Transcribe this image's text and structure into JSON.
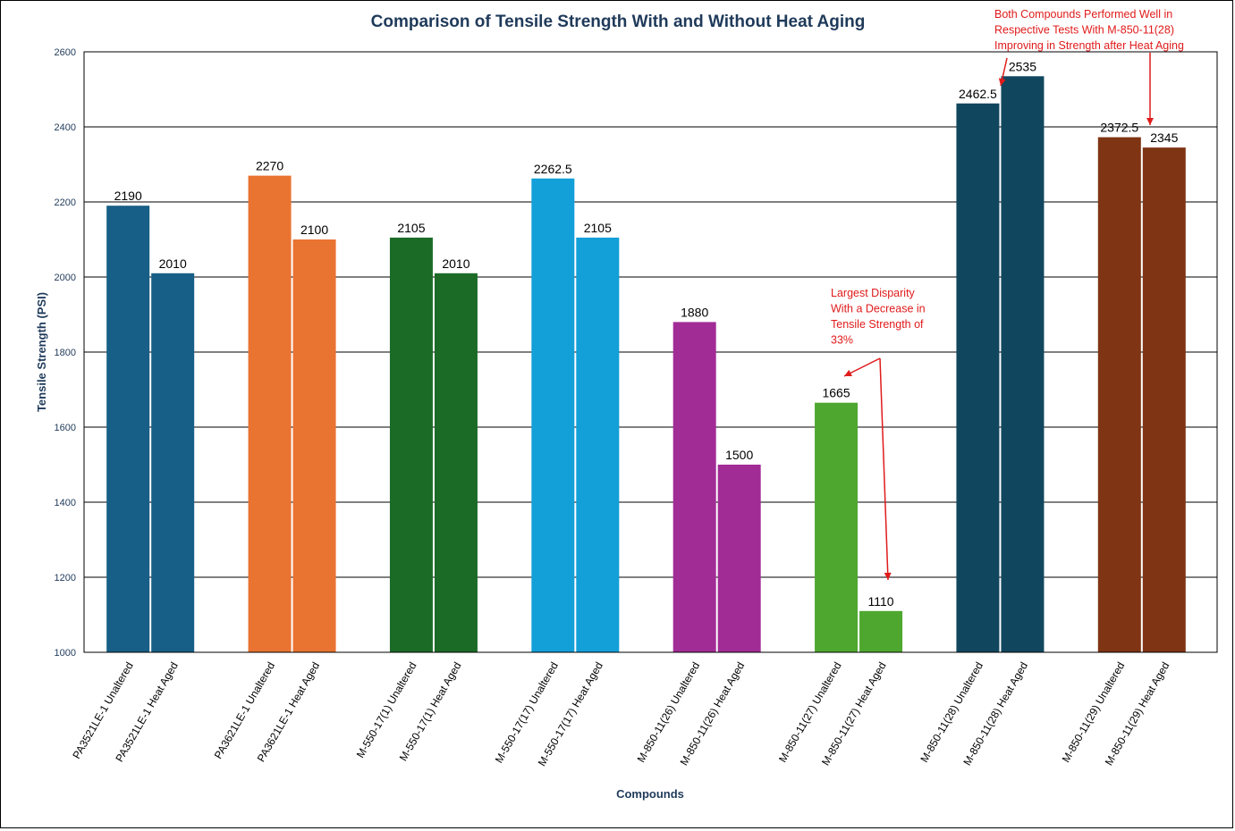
{
  "chart_data": {
    "type": "bar",
    "title": "Comparison of Tensile Strength With and Without Heat Aging",
    "xlabel": "Compounds",
    "ylabel": "Tensile Strength (PSI)",
    "ylim": [
      1000,
      2600
    ],
    "yticks": [
      1000,
      1200,
      1400,
      1600,
      1800,
      2000,
      2200,
      2400,
      2600
    ],
    "grid": true,
    "groups": [
      {
        "color": "#175f86",
        "bars": [
          {
            "label": "PA3521LE-1 Unaltered",
            "value": 2190,
            "value_label": "2190"
          },
          {
            "label": "PA3521LE-1 Heat Aged",
            "value": 2010,
            "value_label": "2010"
          }
        ]
      },
      {
        "color": "#e97331",
        "bars": [
          {
            "label": "PA3621LE-1 Unaltered",
            "value": 2270,
            "value_label": "2270"
          },
          {
            "label": "PA3621LE-1 Heat Aged",
            "value": 2100,
            "value_label": "2100"
          }
        ]
      },
      {
        "color": "#1b6b27",
        "bars": [
          {
            "label": "M-550-17(1) Unaltered",
            "value": 2105,
            "value_label": "2105"
          },
          {
            "label": "M-550-17(1) Heat Aged",
            "value": 2010,
            "value_label": "2010"
          }
        ]
      },
      {
        "color": "#139fd8",
        "bars": [
          {
            "label": "M-550-17(17) Unaltered",
            "value": 2262.5,
            "value_label": "2262.5"
          },
          {
            "label": "M-550-17(17) Heat Aged",
            "value": 2105,
            "value_label": "2105"
          }
        ]
      },
      {
        "color": "#a12c96",
        "bars": [
          {
            "label": "M-850-11(26) Unaltered",
            "value": 1880,
            "value_label": "1880"
          },
          {
            "label": "M-850-11(26) Heat Aged",
            "value": 1500,
            "value_label": "1500"
          }
        ]
      },
      {
        "color": "#4ea72e",
        "bars": [
          {
            "label": "M-850-11(27) Unaltered",
            "value": 1665,
            "value_label": "1665"
          },
          {
            "label": "M-850-11(27) Heat Aged",
            "value": 1110,
            "value_label": "1110"
          }
        ]
      },
      {
        "color": "#10475f",
        "bars": [
          {
            "label": "M-850-11(28) Unaltered",
            "value": 2462.5,
            "value_label": "2462.5"
          },
          {
            "label": "M-850-11(28) Heat Aged",
            "value": 2535,
            "value_label": "2535"
          }
        ]
      },
      {
        "color": "#7f3414",
        "bars": [
          {
            "label": "M-850-11(29) Unaltered",
            "value": 2372.5,
            "value_label": "2372.5"
          },
          {
            "label": "M-850-11(29) Heat Aged",
            "value": 2345,
            "value_label": "2345"
          }
        ]
      }
    ],
    "annotations": [
      {
        "lines": [
          "Largest Disparity",
          "With a Decrease in",
          "Tensile Strength of",
          "33%"
        ],
        "color": "#e01b1b"
      },
      {
        "lines": [
          "Both Compounds Performed Well in",
          "Respective Tests With M-850-11(28)",
          "Improving in Strength after Heat Aging"
        ],
        "color": "#e01b1b"
      }
    ]
  }
}
